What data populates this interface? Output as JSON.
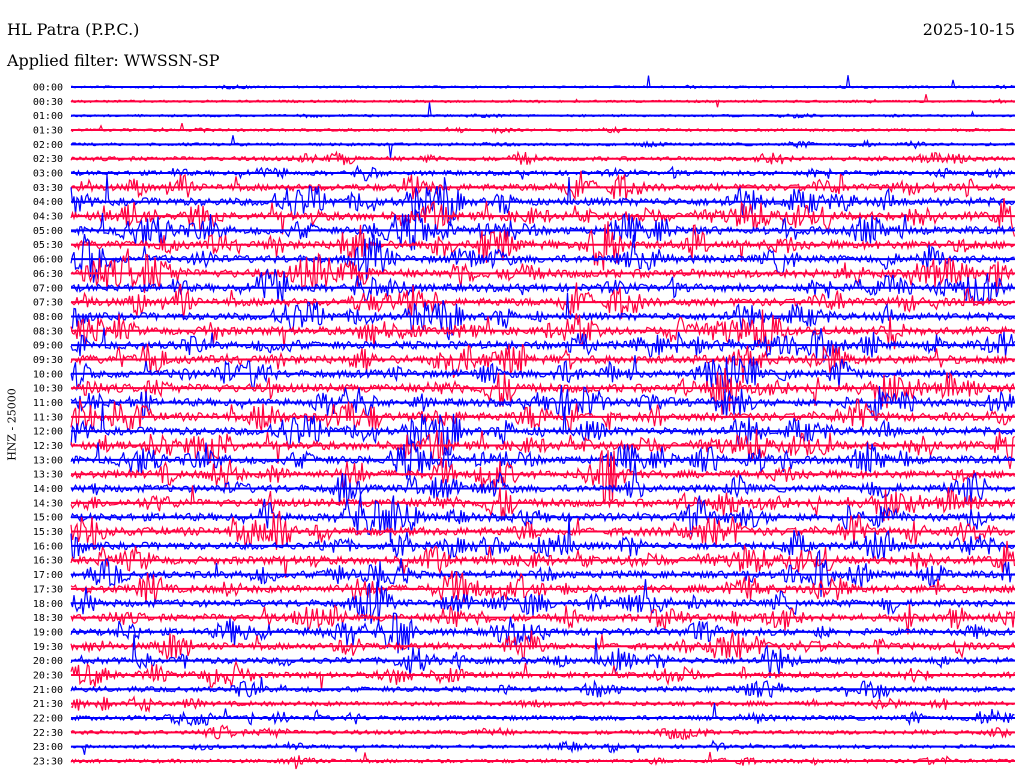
{
  "header": {
    "station": "HL Patra (P.P.C.)",
    "date": "2025-10-15",
    "filter": "Applied filter: WWSSN-SP"
  },
  "chart_data": {
    "type": "line",
    "title": "HL Patra (P.P.C.)",
    "ylabel": "HNZ - 25000",
    "xlabel": "",
    "colors": [
      "#0000ff",
      "#ff0040"
    ],
    "rows": [
      "00:00",
      "00:30",
      "01:00",
      "01:30",
      "02:00",
      "02:30",
      "03:00",
      "03:30",
      "04:00",
      "04:30",
      "05:00",
      "05:30",
      "06:00",
      "06:30",
      "07:00",
      "07:30",
      "08:00",
      "08:30",
      "09:00",
      "09:30",
      "10:00",
      "10:30",
      "11:00",
      "11:30",
      "12:00",
      "12:30",
      "13:00",
      "13:30",
      "14:00",
      "14:30",
      "15:00",
      "15:30",
      "16:00",
      "16:30",
      "17:00",
      "17:30",
      "18:00",
      "18:30",
      "19:00",
      "19:30",
      "20:00",
      "20:30",
      "21:00",
      "21:30",
      "22:00",
      "22:30",
      "23:00",
      "23:30"
    ],
    "activity": [
      0.05,
      0.07,
      0.06,
      0.1,
      0.12,
      0.25,
      0.3,
      0.5,
      0.6,
      0.65,
      0.6,
      0.65,
      0.6,
      0.65,
      0.6,
      0.6,
      0.55,
      0.6,
      0.6,
      0.65,
      0.6,
      0.65,
      0.6,
      0.65,
      0.6,
      0.65,
      0.6,
      0.6,
      0.55,
      0.6,
      0.6,
      0.65,
      0.55,
      0.6,
      0.55,
      0.6,
      0.55,
      0.55,
      0.5,
      0.5,
      0.45,
      0.4,
      0.35,
      0.3,
      0.3,
      0.25,
      0.2,
      0.2
    ]
  }
}
